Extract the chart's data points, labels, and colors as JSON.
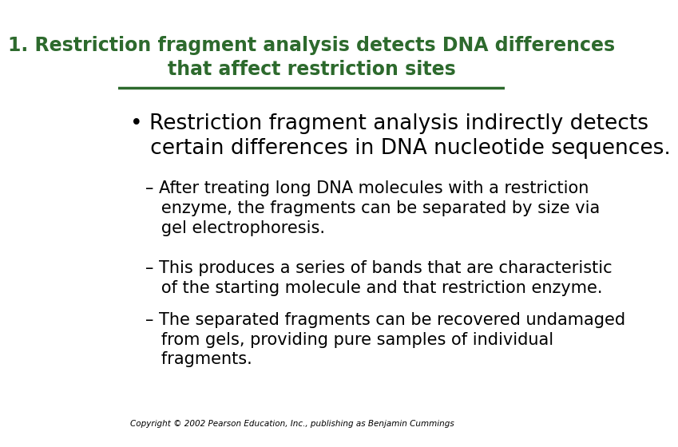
{
  "title_line1": "1. Restriction fragment analysis detects DNA differences",
  "title_line2": "that affect restriction sites",
  "title_color": "#2d6a2d",
  "title_fontsize": 17,
  "bg_color": "#ffffff",
  "line_color": "#2d6a2d",
  "bullet_text_line1": "Restriction fragment analysis indirectly detects",
  "bullet_text_line2": "certain differences in DNA nucleotide sequences.",
  "bullet_fontsize": 19,
  "sub_fontsize": 15,
  "sub1_line1": "After treating long DNA molecules with a restriction",
  "sub1_line2": "enzyme, the fragments can be separated by size via",
  "sub1_line3": "gel electrophoresis.",
  "sub2_line1": "This produces a series of bands that are characteristic",
  "sub2_line2": "of the starting molecule and that restriction enzyme.",
  "sub3_line1": "The separated fragments can be recovered undamaged",
  "sub3_line2": "from gels, providing pure samples of individual",
  "sub3_line3": "fragments.",
  "copyright": "Copyright © 2002 Pearson Education, Inc., publishing as Benjamin Cummings",
  "text_color": "#000000"
}
